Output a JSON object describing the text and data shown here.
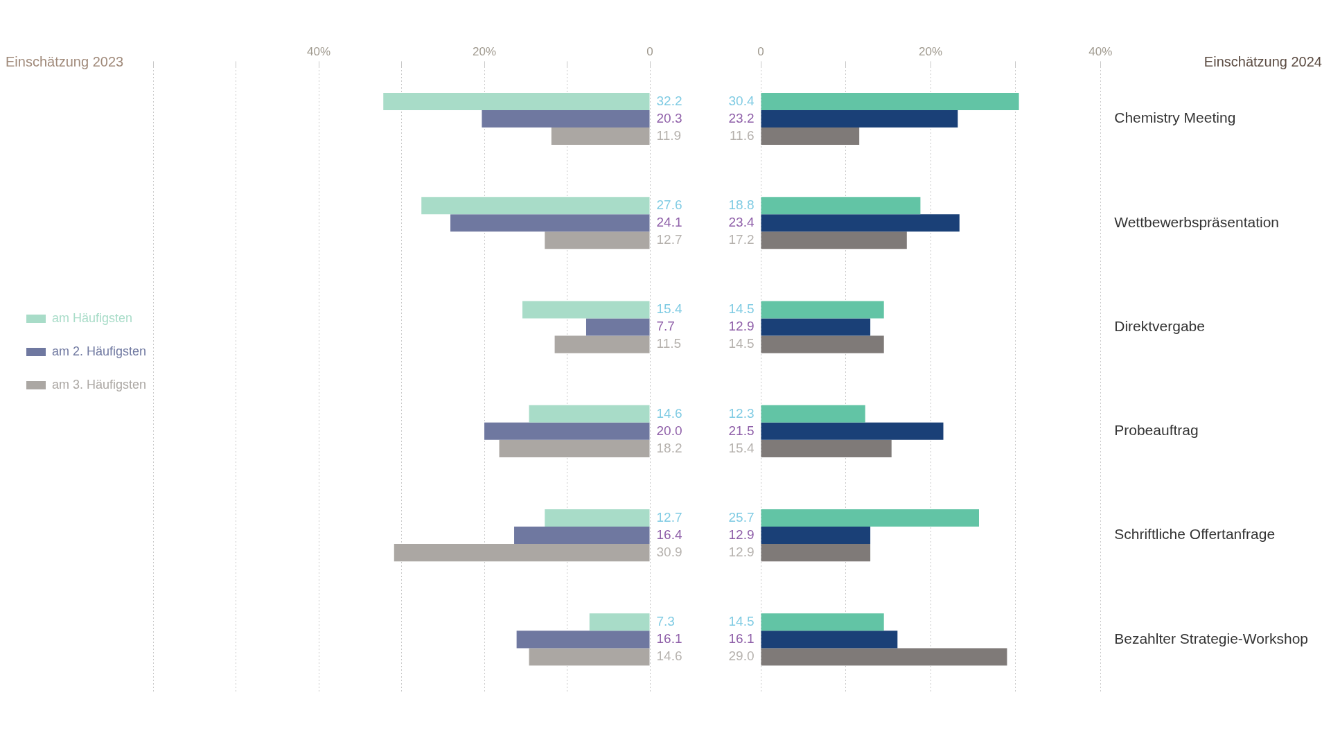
{
  "chart_data": [
    {
      "type": "bar",
      "title": "Einschätzung 2023",
      "orientation": "horizontal",
      "categories": [
        null,
        null,
        null,
        null,
        null,
        null
      ],
      "series": [
        {
          "name": "am Häufigsten",
          "color": "#a8dcc8",
          "values": [
            32.2,
            27.6,
            15.4,
            14.6,
            12.7,
            7.3
          ],
          "value_labels": [
            "32.2",
            "27.6",
            "15.4",
            "14.6",
            "12.7",
            "7.3"
          ]
        },
        {
          "name": "am 2. Häufigsten",
          "color": "#6f78a0",
          "values": [
            20.3,
            24.1,
            7.7,
            20.0,
            16.4,
            16.1
          ],
          "value_labels": [
            "20.3",
            "24.1",
            "7.7",
            "20.0",
            "16.4",
            "16.1"
          ]
        },
        {
          "name": "am 3. Häufigsten",
          "color": "#aba7a3",
          "values": [
            11.9,
            12.7,
            11.5,
            18.2,
            30.9,
            14.6
          ],
          "value_labels": [
            "11.9",
            "12.7",
            "11.5",
            "18.2",
            "30.9",
            "14.6"
          ]
        }
      ],
      "xlim": [
        60,
        0
      ],
      "xticks": [
        {
          "value": 60,
          "label": null
        },
        {
          "value": 50,
          "label": null
        },
        {
          "value": 40,
          "label": "40%"
        },
        {
          "value": 30,
          "label": null
        },
        {
          "value": 20,
          "label": "20%"
        },
        {
          "value": 10,
          "label": null
        },
        0
      ],
      "grid": "x",
      "legend": "left",
      "tick_labels": "x"
    },
    {
      "type": "bar",
      "title": "Einschätzung 2024",
      "orientation": "horizontal",
      "categories": [
        "Chemistry Meeting",
        "Wettbewerbspräsentation",
        "Direktvergabe",
        "Probeauftrag",
        "Schriftliche Offertanfrage",
        "Bezahlter Strategie-Workshop"
      ],
      "series": [
        {
          "color": "#62c4a5",
          "values": [
            30.4,
            18.8,
            14.5,
            12.3,
            25.7,
            14.5
          ],
          "value_labels": [
            "30.4",
            "18.8",
            "14.5",
            "12.3",
            "25.7",
            "14.5"
          ]
        },
        {
          "color": "#1a4077",
          "values": [
            23.2,
            23.4,
            12.9,
            21.5,
            12.9,
            16.1
          ],
          "value_labels": [
            "23.2",
            "23.4",
            "12.9",
            "21.5",
            "12.9",
            "16.1"
          ]
        },
        {
          "color": "#7f7a78",
          "values": [
            11.6,
            17.2,
            14.5,
            15.4,
            12.9,
            29.0
          ],
          "value_labels": [
            "11.6",
            "17.2",
            "14.5",
            "15.4",
            "12.9",
            "29.0"
          ]
        }
      ],
      "xlim": [
        0,
        40
      ],
      "xticks": [
        0,
        {
          "value": 10,
          "label": null
        },
        {
          "value": 20,
          "label": "20%"
        },
        {
          "value": 30,
          "label": null
        },
        {
          "value": 40,
          "label": "40%"
        }
      ],
      "grid": "x"
    }
  ]
}
